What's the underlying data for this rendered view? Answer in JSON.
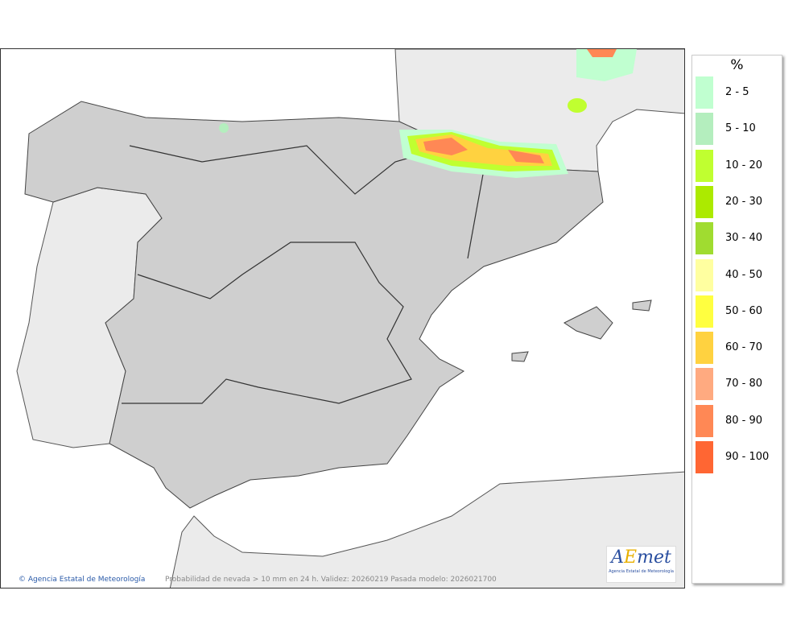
{
  "map": {
    "credit": "Agencia Estatal de Meteorología",
    "caption": "Probabilidad de nevada > 10 mm en 24 h. Validez: 20260219 Pasada modelo: 2026021700",
    "logo_text": "AEmet",
    "logo_subtitle": "Agencia Estatal de Meteorología"
  },
  "legend": {
    "unit": "%",
    "items": [
      {
        "label": "2 - 5",
        "color": "#c0ffd0"
      },
      {
        "label": "5 - 10",
        "color": "#b4eebe"
      },
      {
        "label": "10 - 20",
        "color": "#c0ff30"
      },
      {
        "label": "20 - 30",
        "color": "#acea00"
      },
      {
        "label": "30 - 40",
        "color": "#a0dc30"
      },
      {
        "label": "40 - 50",
        "color": "#ffffa0"
      },
      {
        "label": "50 - 60",
        "color": "#ffff40"
      },
      {
        "label": "60 - 70",
        "color": "#ffd240"
      },
      {
        "label": "70 - 80",
        "color": "#ffaa80"
      },
      {
        "label": "80 - 90",
        "color": "#ff8855"
      },
      {
        "label": "90 - 100",
        "color": "#ff6633"
      }
    ]
  }
}
